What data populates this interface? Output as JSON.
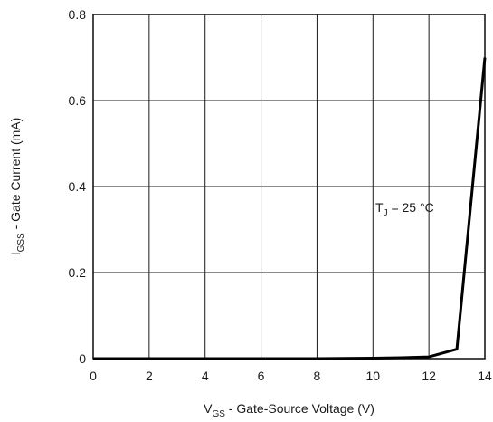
{
  "chart_data": {
    "type": "line",
    "title": "",
    "xlabel": {
      "main": "V",
      "sub": "GS",
      "rest": " - Gate-Source Voltage (V)"
    },
    "ylabel": {
      "main": "I",
      "sub": "GSS",
      "rest": " - Gate Current (mA)"
    },
    "xlim": [
      0,
      14
    ],
    "ylim": [
      0,
      0.8
    ],
    "xticks": [
      "0",
      "2",
      "4",
      "6",
      "8",
      "10",
      "12",
      "14"
    ],
    "yticks": [
      "0",
      "0.2",
      "0.4",
      "0.6",
      "0.8"
    ],
    "grid": true,
    "series": [
      {
        "x": [
          0,
          2,
          4,
          6,
          8,
          10,
          11,
          12,
          13,
          14
        ],
        "y": [
          0,
          0,
          0,
          0,
          0,
          0.001,
          0.002,
          0.004,
          0.022,
          0.7
        ],
        "color": "#000000"
      }
    ],
    "annotation": {
      "main": "T",
      "sub": "J",
      "rest": " = 25 °C"
    }
  }
}
